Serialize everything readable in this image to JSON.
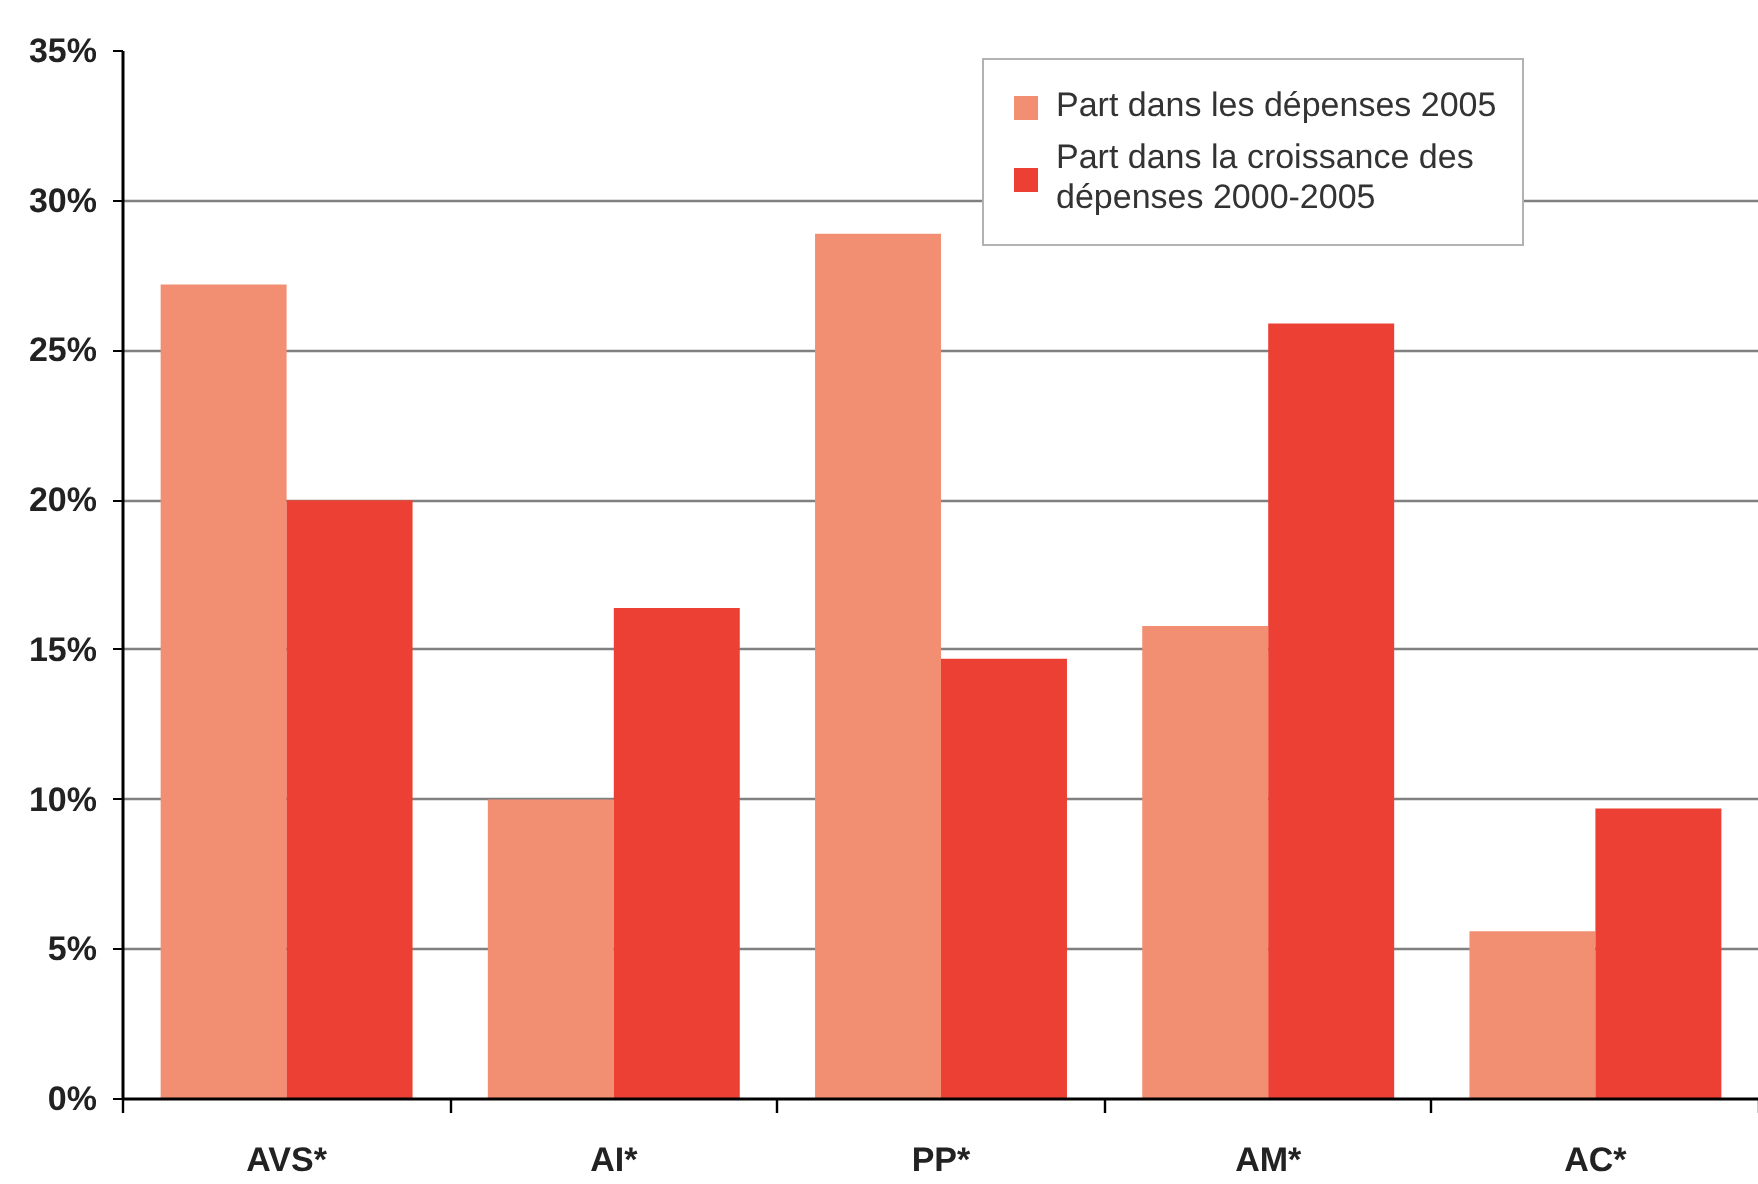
{
  "chart_data": {
    "type": "bar",
    "categories": [
      "AVS*",
      "AI*",
      "PP*",
      "AM*",
      "AC*"
    ],
    "series": [
      {
        "name": "Part dans les dépenses 2005",
        "color": "#f28f73",
        "values": [
          27.2,
          10.0,
          28.9,
          15.8,
          5.6
        ]
      },
      {
        "name": "Part dans la croissance des dépenses 2000-2005",
        "color": "#ec4035",
        "values": [
          20.0,
          16.4,
          14.7,
          25.9,
          9.7
        ]
      }
    ],
    "ylim": [
      0,
      35
    ],
    "yticks": [
      {
        "value": 0,
        "label": "0%"
      },
      {
        "value": 5,
        "label": "5%"
      },
      {
        "value": 10,
        "label": "10%"
      },
      {
        "value": 15,
        "label": "15%"
      },
      {
        "value": 20,
        "label": "20%"
      },
      {
        "value": 25,
        "label": "25%"
      },
      {
        "value": 30,
        "label": "30%"
      },
      {
        "value": 35,
        "label": "35%"
      }
    ],
    "grid": "y",
    "legend": "top right"
  }
}
